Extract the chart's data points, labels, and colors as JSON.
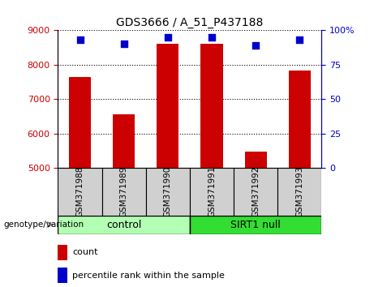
{
  "title": "GDS3666 / A_51_P437188",
  "samples": [
    "GSM371988",
    "GSM371989",
    "GSM371990",
    "GSM371991",
    "GSM371992",
    "GSM371993"
  ],
  "counts": [
    7650,
    6550,
    8600,
    8600,
    5480,
    7820
  ],
  "percentile_ranks": [
    93,
    90,
    95,
    95,
    89,
    93
  ],
  "ylim_left": [
    5000,
    9000
  ],
  "ylim_right": [
    0,
    100
  ],
  "yticks_left": [
    5000,
    6000,
    7000,
    8000,
    9000
  ],
  "yticks_right": [
    0,
    25,
    50,
    75,
    100
  ],
  "bar_color": "#cc0000",
  "dot_color": "#0000cc",
  "n_control": 3,
  "n_sirt1": 3,
  "group_labels": [
    "control",
    "SIRT1 null"
  ],
  "group_colors": [
    "#b3ffb3",
    "#33dd33"
  ],
  "group_label_text": "genotype/variation",
  "legend_count_label": "count",
  "legend_percentile_label": "percentile rank within the sample",
  "tick_color_left": "#cc0000",
  "tick_color_right": "#0000cc",
  "bar_width": 0.5,
  "dot_size": 40,
  "xtick_box_color": "#d0d0d0",
  "title_fontsize": 10,
  "axis_fontsize": 8,
  "legend_fontsize": 8
}
